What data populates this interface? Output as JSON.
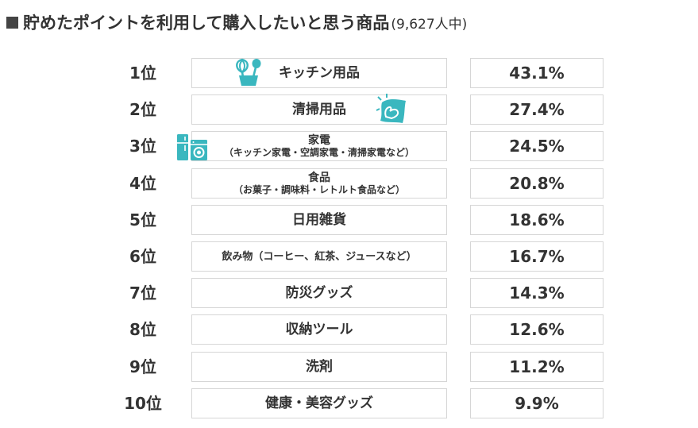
{
  "title": {
    "main": "貯めたポイントを利用して購入したいと思う商品",
    "sub": "(9,627人中)"
  },
  "colors": {
    "accent": "#3ab7bf",
    "text": "#333333",
    "border": "#d6d6d6"
  },
  "chart_data": {
    "type": "table",
    "title": "貯めたポイントを利用して購入したいと思う商品",
    "respondents": "(9,627人中)",
    "rows": [
      {
        "rank": "1位",
        "label": "キッチン用品",
        "sublabel": "",
        "value": 43.1,
        "display": "43.1%"
      },
      {
        "rank": "2位",
        "label": "清掃用品",
        "sublabel": "",
        "value": 27.4,
        "display": "27.4%"
      },
      {
        "rank": "3位",
        "label": "家電",
        "sublabel": "（キッチン家電・空調家電・清掃家電など）",
        "value": 24.5,
        "display": "24.5%"
      },
      {
        "rank": "4位",
        "label": "食品",
        "sublabel": "（お菓子・調味料・レトルト食品など）",
        "value": 20.8,
        "display": "20.8%"
      },
      {
        "rank": "5位",
        "label": "日用雑貨",
        "sublabel": "",
        "value": 18.6,
        "display": "18.6%"
      },
      {
        "rank": "6位",
        "label": "飲み物（コーヒー、紅茶、ジュースなど）",
        "sublabel": "",
        "value": 16.7,
        "display": "16.7%"
      },
      {
        "rank": "7位",
        "label": "防災グッズ",
        "sublabel": "",
        "value": 14.3,
        "display": "14.3%"
      },
      {
        "rank": "8位",
        "label": "収納ツール",
        "sublabel": "",
        "value": 12.6,
        "display": "12.6%"
      },
      {
        "rank": "9位",
        "label": "洗剤",
        "sublabel": "",
        "value": 11.2,
        "display": "11.2%"
      },
      {
        "rank": "10位",
        "label": "健康・美容グッズ",
        "sublabel": "",
        "value": 9.9,
        "display": "9.9%"
      }
    ]
  },
  "icons": {
    "row1": "kitchen-utensils-icon",
    "row2": "cleaning-cloth-icon",
    "row3": "appliances-icon"
  }
}
